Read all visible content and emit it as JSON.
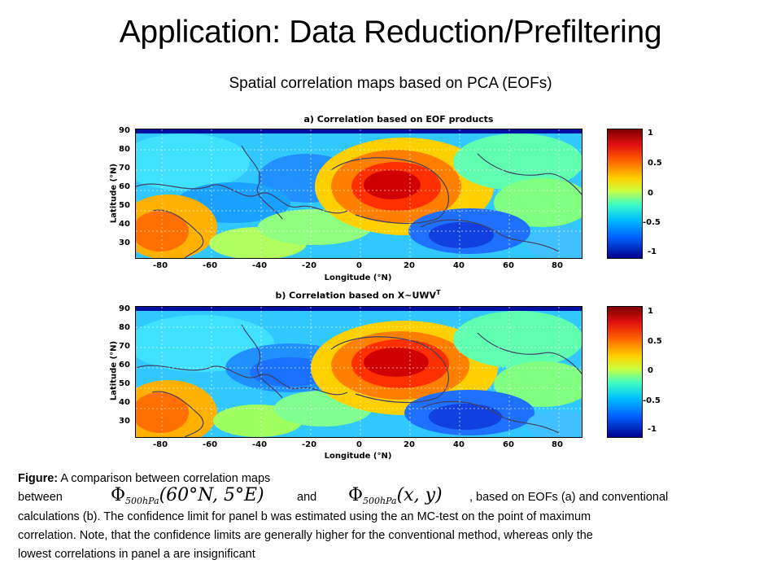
{
  "slide": {
    "title": "Application: Data Reduction/Prefiltering",
    "subtitle": "Spatial correlation maps based on PCA (EOFs)"
  },
  "panels": [
    {
      "title": "a) Correlation based on EOF products",
      "ylabel": "Latitude (°N)",
      "xlabel": "Longitude (°N)",
      "yticks": [
        "90",
        "80",
        "70",
        "60",
        "50",
        "40",
        "30"
      ],
      "xticks": [
        "-80",
        "-60",
        "-40",
        "-20",
        "0",
        "20",
        "40",
        "60",
        "80"
      ]
    },
    {
      "title": "b) Correlation based on X~UWV",
      "title_sup": "T",
      "ylabel": "Latitude (°N)",
      "xlabel": "Longitude (°N)",
      "yticks": [
        "90",
        "80",
        "70",
        "60",
        "50",
        "40",
        "30"
      ],
      "xticks": [
        "-80",
        "-60",
        "-40",
        "-20",
        "0",
        "20",
        "40",
        "60",
        "80"
      ]
    }
  ],
  "colorbar": {
    "ticks": [
      "1",
      "0.5",
      "0",
      "-0.5",
      "-1"
    ]
  },
  "caption": {
    "label": "Figure:",
    "line1": " A comparison between correlation maps",
    "between": "between",
    "and": "and",
    "formula1_sym": "Φ",
    "formula1_sub": "500hPa",
    "formula1_arg": "(60°N, 5°E)",
    "formula2_sym": "Φ",
    "formula2_sub": "500hPa",
    "formula2_arg": "(x, y)",
    "line2_rest": ", based on EOFs (a) and conventional",
    "line3": "calculations (b). The confidence limit for panel b was estimated using the an MC-test on the point of maximum",
    "line4": "correlation. Note, that the confidence limits are generally higher for the conventional method, whereas only the",
    "line5": "lowest correlations in panel a are insignificant"
  }
}
